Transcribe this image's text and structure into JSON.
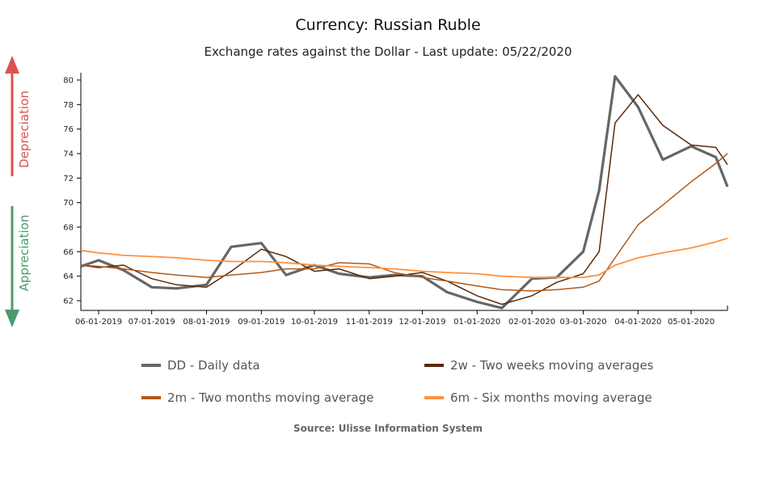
{
  "header": {
    "title": "Currency: Russian Ruble",
    "subtitle": "Exchange rates against the Dollar - Last update: 05/22/2020"
  },
  "side_indicators": {
    "up_label": "Depreciation",
    "up_color": "#d9534f",
    "down_label": "Appreciation",
    "down_color": "#4a9a6c"
  },
  "legend": [
    {
      "key": "DD",
      "label": "DD - Daily data",
      "color": "#666666"
    },
    {
      "key": "2w",
      "label": "2w - Two weeks moving averages",
      "color": "#5a2a0a"
    },
    {
      "key": "2m",
      "label": "2m - Two months moving average",
      "color": "#b05a1a"
    },
    {
      "key": "6m",
      "label": "6m - Six months moving average",
      "color": "#ff9040"
    }
  ],
  "source": "Source: Ulisse Information System",
  "chart_data": {
    "type": "line",
    "title": "Currency: Russian Ruble",
    "subtitle": "Exchange rates against the Dollar - Last update: 05/22/2020",
    "xlabel": "",
    "ylabel": "",
    "ylim": [
      61.2,
      80.6
    ],
    "yticks": [
      62,
      64,
      66,
      68,
      70,
      72,
      74,
      76,
      78,
      80
    ],
    "xticks": [
      "06-01-2019",
      "07-01-2019",
      "08-01-2019",
      "09-01-2019",
      "10-01-2019",
      "11-01-2019",
      "12-01-2019",
      "01-01-2020",
      "02-01-2020",
      "03-01-2020",
      "04-01-2020",
      "05-01-2020"
    ],
    "grid": false,
    "legend_position": "bottom",
    "x": [
      "2019-05-22",
      "2019-06-01",
      "2019-06-15",
      "2019-07-01",
      "2019-07-15",
      "2019-08-01",
      "2019-08-15",
      "2019-09-01",
      "2019-09-15",
      "2019-10-01",
      "2019-10-15",
      "2019-11-01",
      "2019-11-15",
      "2019-12-01",
      "2019-12-15",
      "2020-01-01",
      "2020-01-15",
      "2020-02-01",
      "2020-02-15",
      "2020-03-01",
      "2020-03-10",
      "2020-03-19",
      "2020-04-01",
      "2020-04-15",
      "2020-05-01",
      "2020-05-15",
      "2020-05-22"
    ],
    "series": [
      {
        "name": "DD - Daily data",
        "values": [
          64.8,
          65.3,
          64.5,
          63.1,
          63.0,
          63.3,
          66.4,
          66.7,
          64.1,
          64.9,
          64.2,
          63.9,
          64.1,
          64.0,
          62.7,
          61.9,
          61.4,
          63.8,
          63.9,
          66.0,
          71.0,
          80.3,
          77.8,
          73.5,
          74.6,
          73.7,
          71.3
        ]
      },
      {
        "name": "2w - Two weeks moving averages",
        "values": [
          64.9,
          64.7,
          64.9,
          63.8,
          63.3,
          63.1,
          64.4,
          66.2,
          65.6,
          64.4,
          64.6,
          63.8,
          64.0,
          64.3,
          63.6,
          62.4,
          61.7,
          62.4,
          63.5,
          64.2,
          66.0,
          76.5,
          78.8,
          76.3,
          74.7,
          74.5,
          73.1
        ]
      },
      {
        "name": "2m - Two months moving average",
        "values": [
          64.9,
          64.8,
          64.6,
          64.3,
          64.1,
          63.9,
          64.1,
          64.3,
          64.6,
          64.6,
          65.1,
          65.0,
          64.3,
          63.9,
          63.6,
          63.2,
          62.9,
          62.8,
          62.9,
          63.1,
          63.6,
          65.5,
          68.2,
          69.8,
          71.7,
          73.2,
          74.0
        ]
      },
      {
        "name": "6m - Six months moving average",
        "values": [
          66.1,
          65.9,
          65.7,
          65.6,
          65.5,
          65.3,
          65.2,
          65.2,
          65.1,
          64.9,
          64.8,
          64.7,
          64.6,
          64.4,
          64.3,
          64.2,
          64.0,
          63.9,
          63.9,
          63.9,
          64.1,
          64.9,
          65.5,
          65.9,
          66.3,
          66.8,
          67.1
        ]
      }
    ]
  }
}
